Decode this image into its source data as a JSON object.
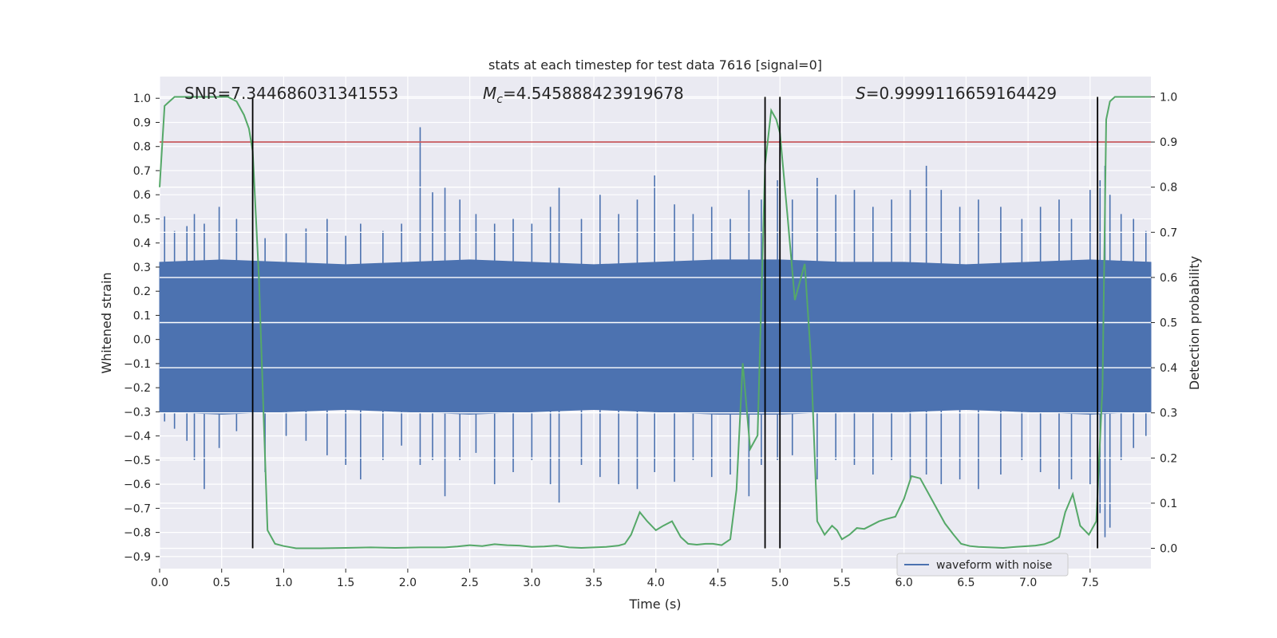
{
  "chart_data": {
    "type": "line",
    "title": "stats at each timestep for test data 7616 [signal=0]",
    "xlabel": "Time (s)",
    "ylabel": "Whitened strain",
    "y2label": "Detection probability",
    "xlim": [
      0.0,
      7.99
    ],
    "ylim": [
      -0.95,
      1.09
    ],
    "y2lim": [
      -0.045,
      1.045
    ],
    "grid": true,
    "legend_position": "lower-right",
    "x_ticks": [
      "0.0",
      "0.5",
      "1.0",
      "1.5",
      "2.0",
      "2.5",
      "3.0",
      "3.5",
      "4.0",
      "4.5",
      "5.0",
      "5.5",
      "6.0",
      "6.5",
      "7.0",
      "7.5"
    ],
    "y_ticks": [
      "1.0",
      "0.9",
      "0.8",
      "0.7",
      "0.6",
      "0.5",
      "0.4",
      "0.3",
      "0.2",
      "0.1",
      "0.0",
      "−0.1",
      "−0.2",
      "−0.3",
      "−0.4",
      "−0.5",
      "−0.6",
      "−0.7",
      "−0.8",
      "−0.9"
    ],
    "y2_ticks": [
      "1.0",
      "0.9",
      "0.8",
      "0.7",
      "0.6",
      "0.5",
      "0.4",
      "0.3",
      "0.2",
      "0.1",
      "0.0"
    ],
    "annotations": {
      "snr": "SNR=7.344686031341553",
      "mc_symbol": "M",
      "mc_sub": "c",
      "mc_value": "=4.545888423919678",
      "s_symbol": "S",
      "s_value": "=0.9999116659164429"
    },
    "threshold": 0.9,
    "vlines": [
      0.75,
      4.88,
      5.0,
      7.56
    ],
    "waveform_envelope": {
      "name": "waveform with noise",
      "color": "#4c72b0",
      "x": [
        0.0,
        0.5,
        1.0,
        1.5,
        2.0,
        2.5,
        3.0,
        3.5,
        4.0,
        4.5,
        5.0,
        5.5,
        6.0,
        6.5,
        7.0,
        7.5,
        7.99
      ],
      "upper": [
        0.32,
        0.33,
        0.32,
        0.31,
        0.32,
        0.33,
        0.32,
        0.31,
        0.32,
        0.33,
        0.33,
        0.32,
        0.32,
        0.31,
        0.32,
        0.33,
        0.32
      ],
      "lower": [
        -0.3,
        -0.31,
        -0.3,
        -0.29,
        -0.3,
        -0.31,
        -0.3,
        -0.29,
        -0.3,
        -0.31,
        -0.31,
        -0.3,
        -0.3,
        -0.29,
        -0.3,
        -0.31,
        -0.3
      ]
    },
    "waveform_spikes": [
      [
        0.04,
        0.51,
        -0.34
      ],
      [
        0.12,
        0.45,
        -0.37
      ],
      [
        0.22,
        0.47,
        -0.42
      ],
      [
        0.28,
        0.52,
        -0.5
      ],
      [
        0.36,
        0.48,
        -0.62
      ],
      [
        0.48,
        0.55,
        -0.45
      ],
      [
        0.62,
        0.5,
        -0.38
      ],
      [
        0.85,
        0.42,
        -0.55
      ],
      [
        1.02,
        0.44,
        -0.4
      ],
      [
        1.18,
        0.46,
        -0.42
      ],
      [
        1.35,
        0.5,
        -0.48
      ],
      [
        1.5,
        0.43,
        -0.52
      ],
      [
        1.62,
        0.48,
        -0.58
      ],
      [
        1.8,
        0.45,
        -0.5
      ],
      [
        1.95,
        0.48,
        -0.44
      ],
      [
        2.1,
        0.88,
        -0.52
      ],
      [
        2.2,
        0.61,
        -0.5
      ],
      [
        2.3,
        0.63,
        -0.65
      ],
      [
        2.42,
        0.58,
        -0.5
      ],
      [
        2.55,
        0.52,
        -0.47
      ],
      [
        2.7,
        0.48,
        -0.6
      ],
      [
        2.85,
        0.5,
        -0.55
      ],
      [
        3.0,
        0.48,
        -0.5
      ],
      [
        3.15,
        0.55,
        -0.6
      ],
      [
        3.22,
        0.63,
        -0.68
      ],
      [
        3.4,
        0.5,
        -0.52
      ],
      [
        3.55,
        0.6,
        -0.57
      ],
      [
        3.7,
        0.52,
        -0.6
      ],
      [
        3.85,
        0.58,
        -0.62
      ],
      [
        3.99,
        0.68,
        -0.55
      ],
      [
        4.15,
        0.56,
        -0.59
      ],
      [
        4.3,
        0.52,
        -0.5
      ],
      [
        4.45,
        0.55,
        -0.57
      ],
      [
        4.6,
        0.5,
        -0.56
      ],
      [
        4.75,
        0.62,
        -0.65
      ],
      [
        4.85,
        0.58,
        -0.52
      ],
      [
        4.98,
        0.66,
        -0.5
      ],
      [
        5.1,
        0.58,
        -0.48
      ],
      [
        5.3,
        0.67,
        -0.58
      ],
      [
        5.45,
        0.6,
        -0.5
      ],
      [
        5.6,
        0.62,
        -0.52
      ],
      [
        5.75,
        0.55,
        -0.56
      ],
      [
        5.9,
        0.58,
        -0.5
      ],
      [
        6.05,
        0.62,
        -0.58
      ],
      [
        6.18,
        0.72,
        -0.56
      ],
      [
        6.3,
        0.62,
        -0.6
      ],
      [
        6.45,
        0.55,
        -0.58
      ],
      [
        6.6,
        0.58,
        -0.62
      ],
      [
        6.78,
        0.55,
        -0.56
      ],
      [
        6.95,
        0.5,
        -0.5
      ],
      [
        7.1,
        0.55,
        -0.55
      ],
      [
        7.25,
        0.58,
        -0.62
      ],
      [
        7.35,
        0.5,
        -0.58
      ],
      [
        7.5,
        0.62,
        -0.6
      ],
      [
        7.58,
        0.66,
        -0.72
      ],
      [
        7.62,
        0.72,
        -0.82
      ],
      [
        7.66,
        0.6,
        -0.78
      ],
      [
        7.75,
        0.52,
        -0.5
      ],
      [
        7.85,
        0.5,
        -0.45
      ],
      [
        7.95,
        0.45,
        -0.4
      ]
    ],
    "detection_probability": {
      "color": "#55a868",
      "x": [
        0.0,
        0.04,
        0.08,
        0.12,
        0.2,
        0.3,
        0.4,
        0.5,
        0.55,
        0.62,
        0.68,
        0.72,
        0.75,
        0.8,
        0.87,
        0.93,
        1.0,
        1.1,
        1.3,
        1.5,
        1.7,
        1.9,
        2.1,
        2.3,
        2.4,
        2.5,
        2.6,
        2.7,
        2.8,
        2.9,
        3.0,
        3.1,
        3.2,
        3.3,
        3.4,
        3.5,
        3.6,
        3.7,
        3.75,
        3.8,
        3.87,
        3.93,
        4.0,
        4.06,
        4.13,
        4.2,
        4.26,
        4.33,
        4.4,
        4.46,
        4.53,
        4.6,
        4.65,
        4.7,
        4.76,
        4.82,
        4.88,
        4.93,
        4.97,
        5.0,
        5.06,
        5.12,
        5.16,
        5.2,
        5.25,
        5.3,
        5.36,
        5.42,
        5.46,
        5.5,
        5.56,
        5.62,
        5.68,
        5.73,
        5.8,
        5.86,
        5.93,
        6.0,
        6.06,
        6.13,
        6.2,
        6.26,
        6.33,
        6.4,
        6.46,
        6.53,
        6.6,
        6.7,
        6.8,
        6.9,
        7.0,
        7.06,
        7.13,
        7.19,
        7.25,
        7.3,
        7.36,
        7.42,
        7.49,
        7.55,
        7.6,
        7.63,
        7.66,
        7.7,
        7.8,
        7.9,
        7.99
      ],
      "y": [
        0.8,
        0.98,
        0.99,
        1.0,
        1.0,
        1.0,
        1.0,
        1.0,
        1.0,
        0.99,
        0.96,
        0.93,
        0.88,
        0.6,
        0.04,
        0.01,
        0.005,
        0.0,
        0.0,
        0.001,
        0.002,
        0.001,
        0.002,
        0.002,
        0.004,
        0.007,
        0.005,
        0.009,
        0.007,
        0.006,
        0.003,
        0.004,
        0.006,
        0.002,
        0.001,
        0.002,
        0.003,
        0.006,
        0.01,
        0.03,
        0.08,
        0.06,
        0.04,
        0.05,
        0.06,
        0.025,
        0.01,
        0.008,
        0.01,
        0.01,
        0.007,
        0.02,
        0.13,
        0.41,
        0.22,
        0.25,
        0.85,
        0.97,
        0.95,
        0.92,
        0.74,
        0.55,
        0.59,
        0.63,
        0.42,
        0.06,
        0.03,
        0.05,
        0.04,
        0.02,
        0.03,
        0.045,
        0.043,
        0.05,
        0.06,
        0.065,
        0.07,
        0.11,
        0.16,
        0.155,
        0.12,
        0.09,
        0.055,
        0.03,
        0.01,
        0.005,
        0.003,
        0.002,
        0.001,
        0.003,
        0.005,
        0.006,
        0.009,
        0.015,
        0.025,
        0.08,
        0.12,
        0.05,
        0.03,
        0.06,
        0.36,
        0.95,
        0.99,
        1.0,
        1.0,
        1.0,
        1.0
      ]
    }
  }
}
